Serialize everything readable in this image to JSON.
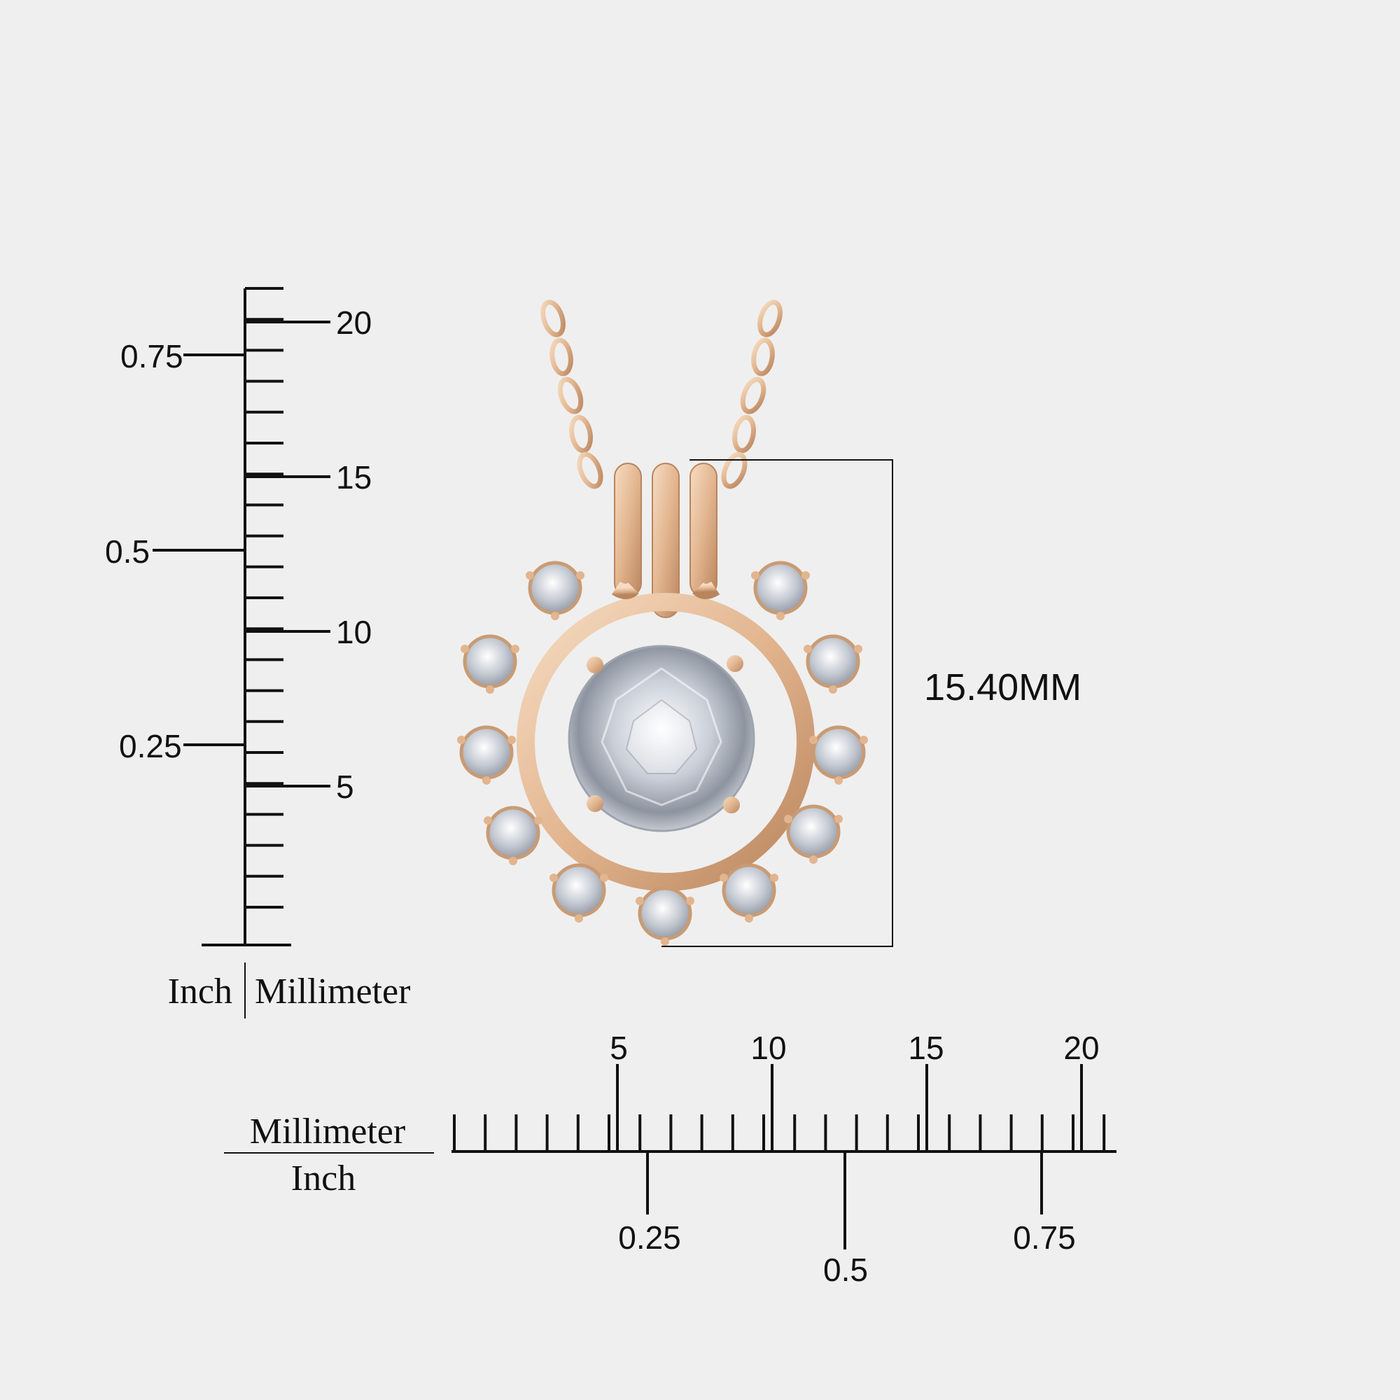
{
  "colors": {
    "background": "#efefef",
    "gold": "#e2b58f",
    "gold_dark": "#b9855e",
    "gold_light": "#f4d6b9",
    "diamond": "#cfd3da",
    "ink": "#111111"
  },
  "product": {
    "dimension_label": "15.40MM",
    "pendant": "pendant-illustration"
  },
  "vertical_ruler": {
    "inch_ticks": [
      "0.75",
      "0.5",
      "0.25"
    ],
    "mm_ticks": [
      "20",
      "15",
      "10",
      "5"
    ],
    "caption_inch": "Inch",
    "caption_mm": "Millimeter"
  },
  "horizontal_ruler": {
    "mm_ticks": [
      "5",
      "10",
      "15",
      "20"
    ],
    "inch_ticks": [
      "0.25",
      "0.5",
      "0.75"
    ],
    "caption_mm": "Millimeter",
    "caption_inch": "Inch"
  }
}
